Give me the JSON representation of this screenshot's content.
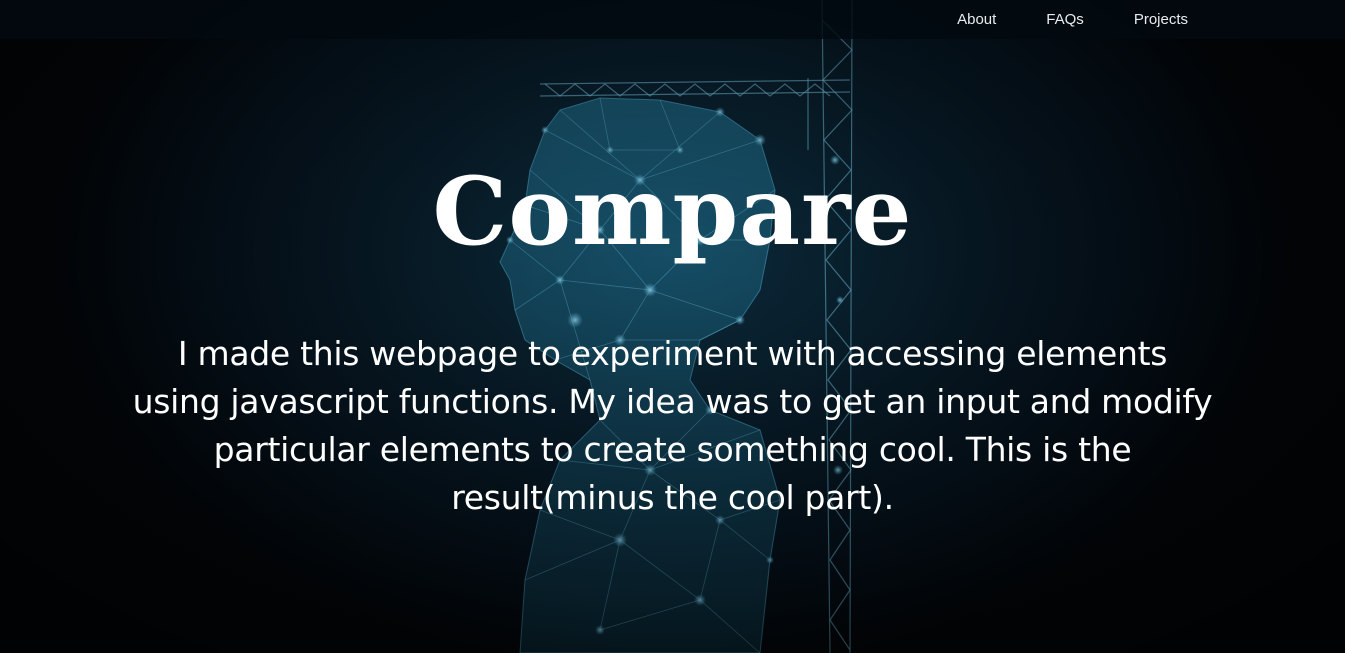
{
  "nav": {
    "links": [
      {
        "label": "About"
      },
      {
        "label": "FAQs"
      },
      {
        "label": "Projects"
      }
    ]
  },
  "hero": {
    "title": "Compare",
    "description": "I made this webpage to experiment with accessing elements using javascript functions. My idea was to get an input and modify particular elements to create something cool. This is the result(minus the cool part).",
    "background_image": "constellation human figure with crane tower"
  },
  "colors": {
    "background": "#0a2333",
    "accent_glow": "#4fb8e8",
    "text": "#ffffff",
    "nav_bg": "#020a10"
  }
}
